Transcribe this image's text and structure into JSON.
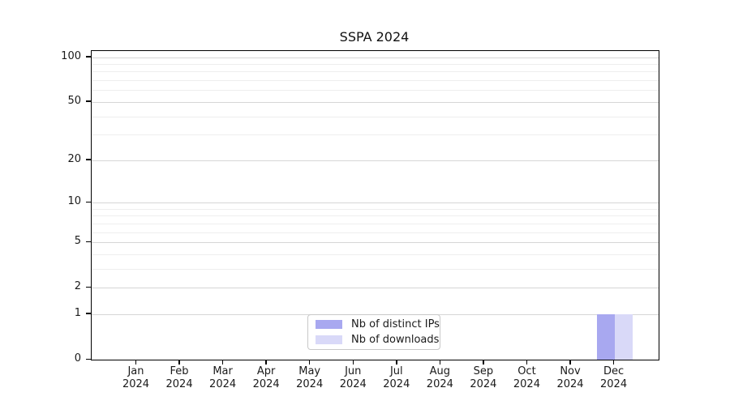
{
  "chart_data": {
    "type": "bar",
    "title": "SSPA 2024",
    "categories": [
      {
        "month": "Jan",
        "year": "2024"
      },
      {
        "month": "Feb",
        "year": "2024"
      },
      {
        "month": "Mar",
        "year": "2024"
      },
      {
        "month": "Apr",
        "year": "2024"
      },
      {
        "month": "May",
        "year": "2024"
      },
      {
        "month": "Jun",
        "year": "2024"
      },
      {
        "month": "Jul",
        "year": "2024"
      },
      {
        "month": "Aug",
        "year": "2024"
      },
      {
        "month": "Sep",
        "year": "2024"
      },
      {
        "month": "Oct",
        "year": "2024"
      },
      {
        "month": "Nov",
        "year": "2024"
      },
      {
        "month": "Dec",
        "year": "2024"
      }
    ],
    "series": [
      {
        "name": "Nb of distinct IPs",
        "color": "#a8a8f0",
        "values": [
          0,
          0,
          0,
          0,
          0,
          0,
          0,
          0,
          0,
          0,
          0,
          1
        ]
      },
      {
        "name": "Nb of downloads",
        "color": "#d9d9f8",
        "values": [
          0,
          0,
          0,
          0,
          0,
          0,
          0,
          0,
          0,
          0,
          0,
          1
        ]
      }
    ],
    "y_axis": {
      "scale": "log1p",
      "ticks": [
        0,
        1,
        2,
        5,
        10,
        20,
        50,
        100
      ],
      "minor_gridlines": [
        3,
        4,
        6,
        7,
        8,
        9,
        30,
        40,
        60,
        70,
        80,
        90
      ],
      "max": 110
    },
    "xlabel": "",
    "ylabel": "",
    "grid": true,
    "legend_position": "bottom-center"
  },
  "colors": {
    "major_grid": "#d6d6d6",
    "minor_grid": "#eeeeee",
    "spine": "#000000",
    "text": "#1a1a1a",
    "background": "#ffffff"
  }
}
